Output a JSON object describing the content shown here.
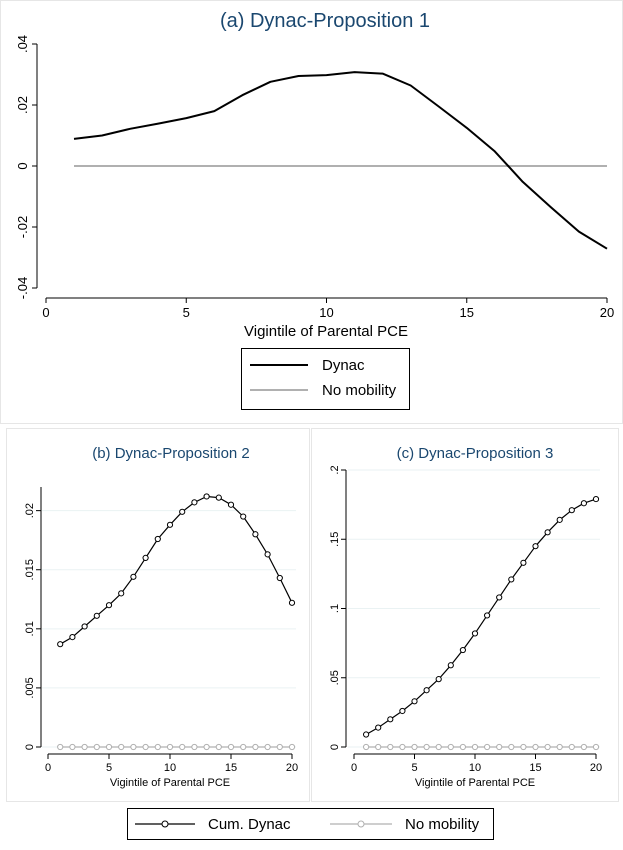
{
  "chart_data": [
    {
      "type": "line",
      "title": "(a) Dynac-Proposition 1",
      "xlabel": "Vigintile of Parental PCE",
      "ylabel": "",
      "xlim": [
        0,
        20
      ],
      "ylim": [
        -0.04,
        0.04
      ],
      "xticks": [
        0,
        5,
        10,
        15,
        20
      ],
      "xtick_labels": [
        "0",
        "5",
        "10",
        "15",
        "20"
      ],
      "yticks": [
        -0.04,
        -0.02,
        0,
        0.02,
        0.04
      ],
      "ytick_labels": [
        "-.04",
        "-.02",
        "0",
        ".02",
        ".04"
      ],
      "grid": false,
      "x": [
        1,
        2,
        3,
        4,
        5,
        6,
        7,
        8,
        9,
        10,
        11,
        12,
        13,
        14,
        15,
        16,
        17,
        18,
        19,
        20
      ],
      "series": [
        {
          "name": "Dynac",
          "color": "#000000",
          "values": [
            0.0089,
            0.01,
            0.0122,
            0.0139,
            0.0157,
            0.018,
            0.0232,
            0.0276,
            0.0295,
            0.0298,
            0.0308,
            0.0303,
            0.0264,
            0.0195,
            0.0125,
            0.0048,
            -0.0052,
            -0.0135,
            -0.0215,
            -0.0271
          ]
        },
        {
          "name": "No mobility",
          "color": "#b0b0b0",
          "values": [
            0,
            0,
            0,
            0,
            0,
            0,
            0,
            0,
            0,
            0,
            0,
            0,
            0,
            0,
            0,
            0,
            0,
            0,
            0,
            0
          ]
        }
      ],
      "legend": {
        "position": "bottom",
        "entries": [
          "Dynac",
          "No mobility"
        ]
      }
    },
    {
      "type": "line",
      "title": "(b) Dynac-Proposition 2",
      "xlabel": "Vigintile of Parental PCE",
      "ylabel": "",
      "xlim": [
        0,
        20
      ],
      "ylim": [
        0,
        0.022
      ],
      "xticks": [
        0,
        5,
        10,
        15,
        20
      ],
      "xtick_labels": [
        "0",
        "5",
        "10",
        "15",
        "20"
      ],
      "yticks": [
        0,
        0.005,
        0.01,
        0.015,
        0.02
      ],
      "ytick_labels": [
        "0",
        ".005",
        ".01",
        ".015",
        ".02"
      ],
      "grid": true,
      "markers": "hollow-circle",
      "x": [
        1,
        2,
        3,
        4,
        5,
        6,
        7,
        8,
        9,
        10,
        11,
        12,
        13,
        14,
        15,
        16,
        17,
        18,
        19,
        20
      ],
      "series": [
        {
          "name": "Cum. Dynac",
          "color": "#000000",
          "values": [
            0.0087,
            0.0093,
            0.0102,
            0.0111,
            0.012,
            0.013,
            0.0144,
            0.016,
            0.0176,
            0.0188,
            0.0199,
            0.0207,
            0.0212,
            0.0211,
            0.0205,
            0.0195,
            0.018,
            0.0163,
            0.0143,
            0.0122
          ]
        },
        {
          "name": "No mobility",
          "color": "#b0b0b0",
          "values": [
            0,
            0,
            0,
            0,
            0,
            0,
            0,
            0,
            0,
            0,
            0,
            0,
            0,
            0,
            0,
            0,
            0,
            0,
            0,
            0
          ]
        }
      ]
    },
    {
      "type": "line",
      "title": "(c) Dynac-Proposition 3",
      "xlabel": "Vigintile of Parental PCE",
      "ylabel": "",
      "xlim": [
        0,
        20
      ],
      "ylim": [
        0,
        0.2
      ],
      "xticks": [
        0,
        5,
        10,
        15,
        20
      ],
      "xtick_labels": [
        "0",
        "5",
        "10",
        "15",
        "20"
      ],
      "yticks": [
        0,
        0.05,
        0.1,
        0.15,
        0.2
      ],
      "ytick_labels": [
        "0",
        ".05",
        ".1",
        ".15",
        ".2"
      ],
      "grid": true,
      "markers": "hollow-circle",
      "x": [
        1,
        2,
        3,
        4,
        5,
        6,
        7,
        8,
        9,
        10,
        11,
        12,
        13,
        14,
        15,
        16,
        17,
        18,
        19,
        20
      ],
      "series": [
        {
          "name": "Cum. Dynac",
          "color": "#000000",
          "values": [
            0.009,
            0.014,
            0.02,
            0.026,
            0.033,
            0.041,
            0.049,
            0.059,
            0.07,
            0.082,
            0.095,
            0.108,
            0.121,
            0.133,
            0.145,
            0.155,
            0.164,
            0.171,
            0.176,
            0.179
          ]
        },
        {
          "name": "No mobility",
          "color": "#b0b0b0",
          "values": [
            0,
            0,
            0,
            0,
            0,
            0,
            0,
            0,
            0,
            0,
            0,
            0,
            0,
            0,
            0,
            0,
            0,
            0,
            0,
            0
          ]
        }
      ],
      "legend": {
        "position": "bottom",
        "entries": [
          "Cum. Dynac",
          "No mobility"
        ],
        "shared_with": "(b)"
      }
    }
  ]
}
